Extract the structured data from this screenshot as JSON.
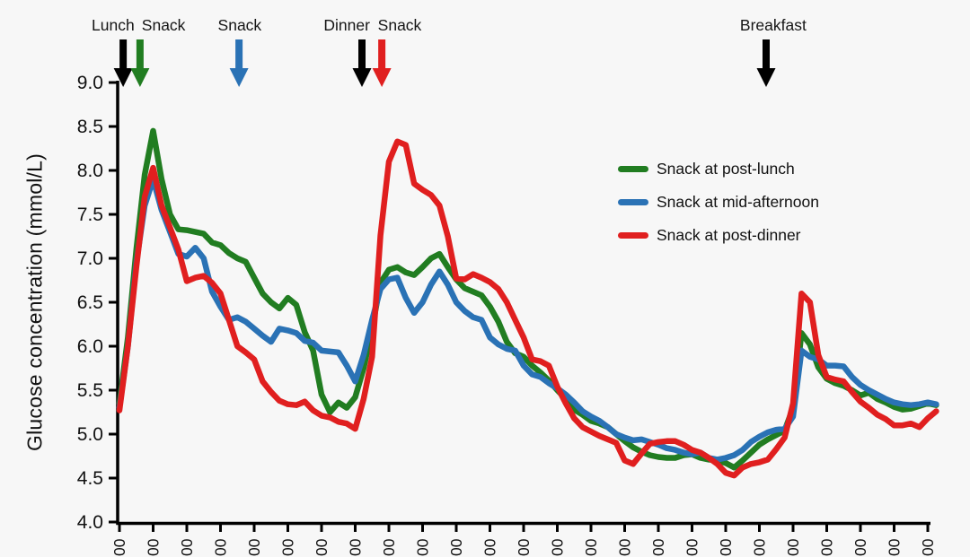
{
  "window": {
    "background": "#f7f7f7"
  },
  "y_axis": {
    "title": "Glucose concentration (mmol/L)",
    "tick_labels": [
      "9.0",
      "8.5",
      "8.0",
      "7.5",
      "7.0",
      "6.5",
      "6.0",
      "5.5",
      "5.0",
      "4.5",
      "4.0"
    ]
  },
  "x_axis": {
    "tick_labels": [
      "00",
      "00",
      "00",
      "00",
      "00",
      "00",
      "00",
      "00",
      "00",
      "00",
      "00",
      "00",
      "00",
      "00",
      "00",
      "00",
      "00",
      "00",
      "00",
      "00",
      "00",
      "00",
      "00",
      "00",
      "00"
    ]
  },
  "legend": {
    "items": [
      {
        "label": "Snack at post-lunch",
        "color": "#217d21"
      },
      {
        "label": "Snack at mid-afternoon",
        "color": "#2a72b5"
      },
      {
        "label": "Snack at post-dinner",
        "color": "#e01f1f"
      }
    ]
  },
  "annotations": [
    {
      "text": "Lunch",
      "text_h": -0.19,
      "arrow_h": 0.11,
      "color": "#000000"
    },
    {
      "text": "Snack",
      "text_h": 1.31,
      "arrow_h": 0.61,
      "color": "#217d21"
    },
    {
      "text": "Snack",
      "text_h": 3.57,
      "arrow_h": 3.55,
      "color": "#2a72b5"
    },
    {
      "text": "Dinner",
      "text_h": 6.75,
      "arrow_h": 7.2,
      "color": "#000000"
    },
    {
      "text": "Snack",
      "text_h": 8.32,
      "arrow_h": 7.79,
      "color": "#e01f1f"
    },
    {
      "text": "Breakfast",
      "text_h": 19.41,
      "arrow_h": 19.2,
      "color": "#000000"
    }
  ],
  "chart_data": {
    "type": "line",
    "title": "",
    "xlabel": "",
    "ylabel": "Glucose concentration (mmol/L)",
    "ylim": [
      4.0,
      9.0
    ],
    "y_tick_step": 0.5,
    "grid": false,
    "legend_position": "upper right",
    "x_start": 0,
    "x_step": 0.25,
    "x_axis_tick_count": 25,
    "series": [
      {
        "name": "Snack at post-lunch",
        "color": "#217d21",
        "values": [
          5.35,
          6.1,
          7.1,
          7.95,
          8.45,
          7.9,
          7.5,
          7.33,
          7.32,
          7.3,
          7.28,
          7.18,
          7.15,
          7.06,
          7.0,
          6.96,
          6.78,
          6.6,
          6.5,
          6.43,
          6.55,
          6.47,
          6.16,
          5.95,
          5.45,
          5.25,
          5.36,
          5.3,
          5.42,
          5.75,
          6.2,
          6.72,
          6.87,
          6.9,
          6.84,
          6.81,
          6.9,
          7.0,
          7.05,
          6.9,
          6.76,
          6.66,
          6.62,
          6.58,
          6.45,
          6.28,
          6.05,
          5.92,
          5.88,
          5.78,
          5.7,
          5.61,
          5.5,
          5.4,
          5.28,
          5.22,
          5.15,
          5.12,
          5.08,
          5.0,
          4.92,
          4.85,
          4.8,
          4.76,
          4.74,
          4.73,
          4.73,
          4.76,
          4.77,
          4.73,
          4.71,
          4.7,
          4.67,
          4.62,
          4.7,
          4.79,
          4.88,
          4.94,
          4.99,
          5.04,
          5.3,
          6.15,
          6.02,
          5.76,
          5.63,
          5.58,
          5.55,
          5.5,
          5.44,
          5.47,
          5.4,
          5.36,
          5.31,
          5.28,
          5.29,
          5.32,
          5.35,
          5.33
        ]
      },
      {
        "name": "Snack at mid-afternoon",
        "color": "#2a72b5",
        "values": [
          5.3,
          6.0,
          6.95,
          7.6,
          7.9,
          7.55,
          7.3,
          7.05,
          7.02,
          7.12,
          7.0,
          6.62,
          6.45,
          6.3,
          6.33,
          6.28,
          6.2,
          6.12,
          6.05,
          6.2,
          6.18,
          6.15,
          6.06,
          6.04,
          5.95,
          5.94,
          5.93,
          5.78,
          5.6,
          5.9,
          6.3,
          6.65,
          6.76,
          6.78,
          6.55,
          6.38,
          6.5,
          6.7,
          6.85,
          6.7,
          6.5,
          6.4,
          6.33,
          6.3,
          6.1,
          6.02,
          5.97,
          5.95,
          5.78,
          5.68,
          5.65,
          5.58,
          5.52,
          5.45,
          5.36,
          5.26,
          5.2,
          5.15,
          5.08,
          5.0,
          4.96,
          4.93,
          4.94,
          4.91,
          4.88,
          4.84,
          4.82,
          4.79,
          4.77,
          4.79,
          4.73,
          4.71,
          4.73,
          4.76,
          4.82,
          4.91,
          4.97,
          5.02,
          5.05,
          5.06,
          5.2,
          5.95,
          5.88,
          5.85,
          5.78,
          5.78,
          5.77,
          5.65,
          5.56,
          5.5,
          5.45,
          5.4,
          5.36,
          5.34,
          5.33,
          5.34,
          5.36,
          5.34
        ]
      },
      {
        "name": "Snack at post-dinner",
        "color": "#e01f1f",
        "values": [
          5.27,
          6.0,
          6.9,
          7.7,
          8.03,
          7.6,
          7.35,
          7.1,
          6.74,
          6.78,
          6.8,
          6.72,
          6.6,
          6.3,
          6.0,
          5.93,
          5.85,
          5.6,
          5.48,
          5.38,
          5.34,
          5.33,
          5.37,
          5.27,
          5.21,
          5.19,
          5.14,
          5.12,
          5.06,
          5.4,
          5.88,
          7.26,
          8.1,
          8.33,
          8.29,
          7.85,
          7.78,
          7.72,
          7.6,
          7.25,
          6.77,
          6.76,
          6.82,
          6.78,
          6.73,
          6.65,
          6.5,
          6.3,
          6.1,
          5.85,
          5.83,
          5.78,
          5.54,
          5.35,
          5.18,
          5.08,
          5.03,
          4.98,
          4.94,
          4.9,
          4.7,
          4.66,
          4.78,
          4.89,
          4.91,
          4.92,
          4.92,
          4.88,
          4.82,
          4.79,
          4.73,
          4.66,
          4.56,
          4.53,
          4.62,
          4.66,
          4.68,
          4.71,
          4.83,
          4.96,
          5.35,
          6.6,
          6.5,
          5.9,
          5.65,
          5.62,
          5.6,
          5.48,
          5.37,
          5.3,
          5.22,
          5.17,
          5.1,
          5.1,
          5.12,
          5.08,
          5.18,
          5.26
        ]
      }
    ]
  }
}
